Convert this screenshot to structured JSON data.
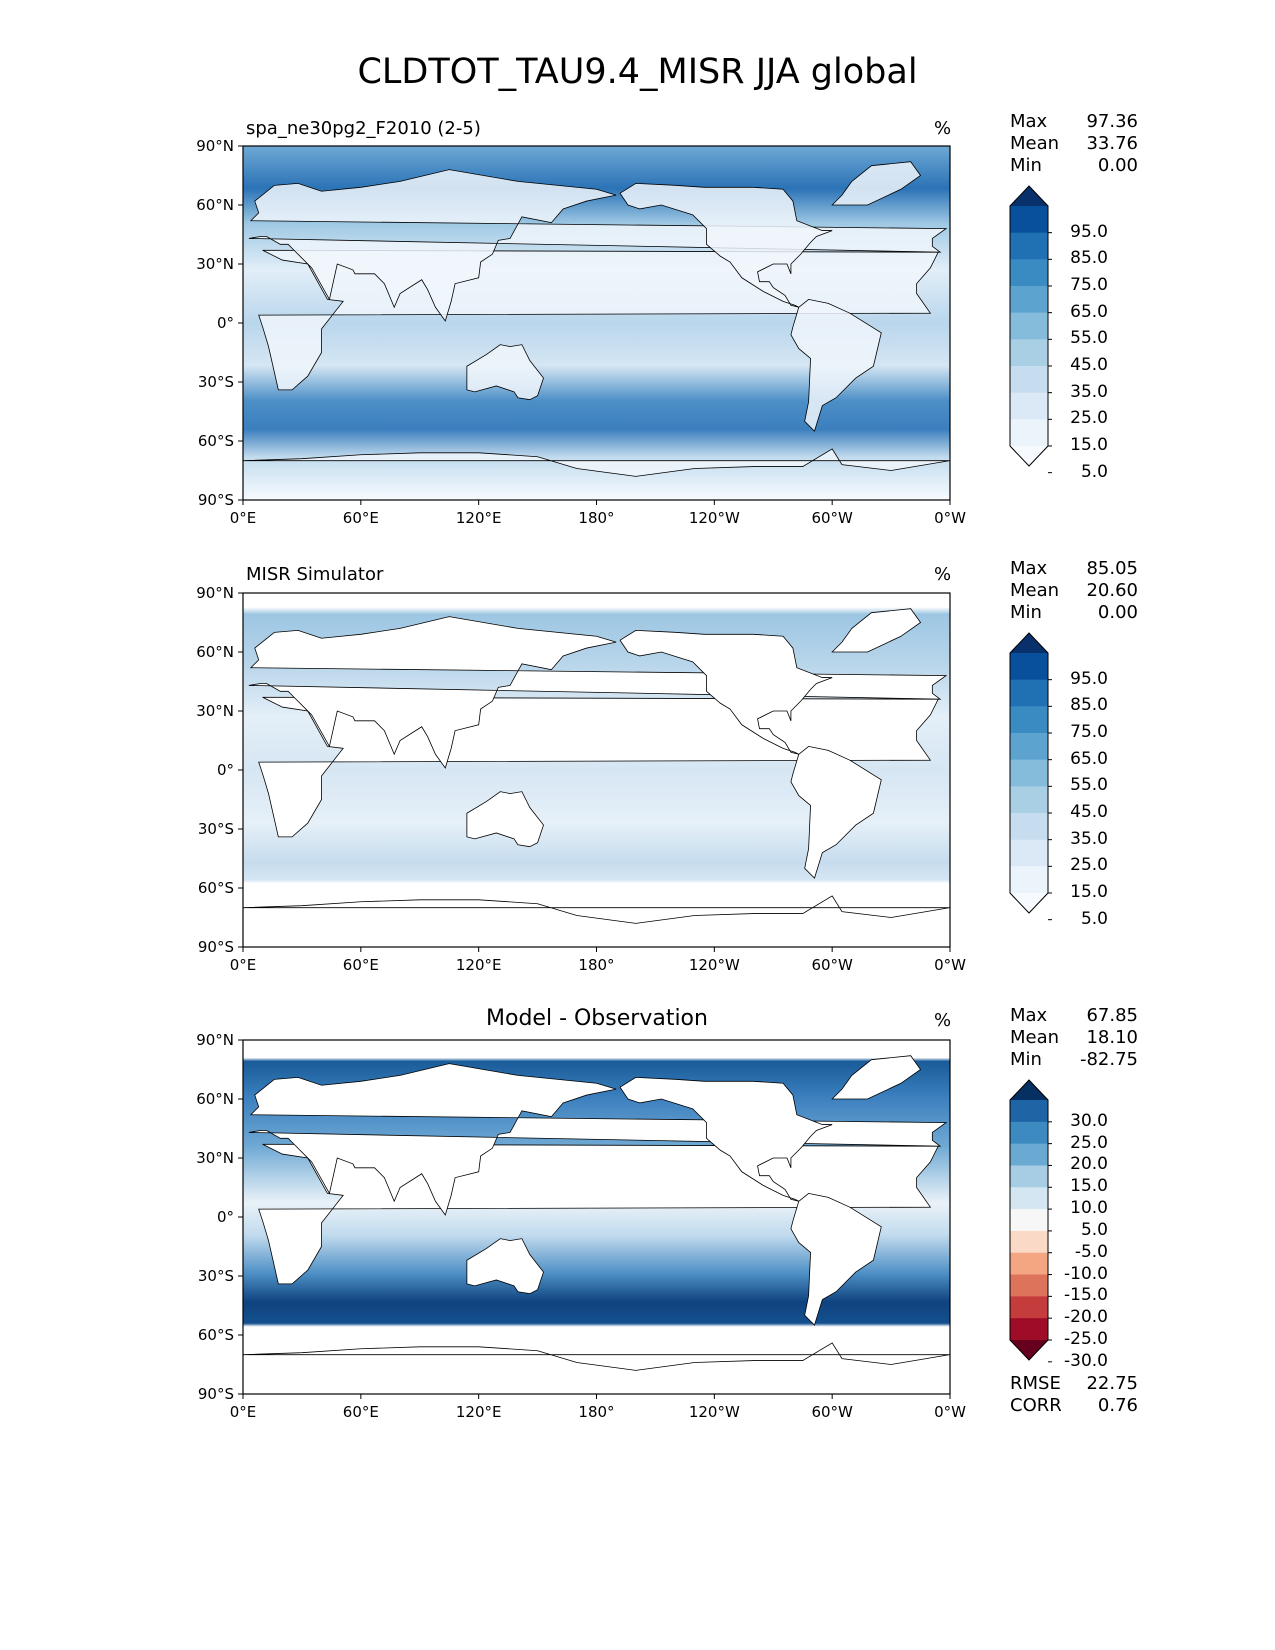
{
  "chart_data": {
    "type": "heatmap",
    "title": "CLDTOT_TAU9.4_MISR JJA global",
    "projection": "PlateCarree, central longitude 180",
    "x_ticks": [
      "0°E",
      "60°E",
      "120°E",
      "180°",
      "120°W",
      "60°W",
      "0°W"
    ],
    "y_ticks": [
      "90°N",
      "60°N",
      "30°N",
      "0°",
      "30°S",
      "60°S",
      "90°S"
    ],
    "panels": [
      {
        "id": "test",
        "title": "spa_ne30pg2_F2010 (2-5)",
        "units": "%",
        "stats": {
          "max_label": "Max",
          "max": "97.36",
          "mean_label": "Mean",
          "mean": "33.76",
          "min_label": "Min",
          "min": "0.00"
        },
        "colorbar": {
          "labels": [
            "95.0",
            "85.0",
            "75.0",
            "65.0",
            "55.0",
            "45.0",
            "35.0",
            "25.0",
            "15.0",
            "5.0"
          ],
          "colors": [
            "#08306b",
            "#08509b",
            "#2070b4",
            "#3a8bc2",
            "#5ca3d0",
            "#86bcdb",
            "#a9cfe5",
            "#c6dcef",
            "#dbe9f6",
            "#ebf3fb",
            "#f7fbff"
          ]
        }
      },
      {
        "id": "reference",
        "title": "MISR Simulator",
        "units": "%",
        "stats": {
          "max_label": "Max",
          "max": "85.05",
          "mean_label": "Mean",
          "mean": "20.60",
          "min_label": "Min",
          "min": "0.00"
        },
        "colorbar": {
          "labels": [
            "95.0",
            "85.0",
            "75.0",
            "65.0",
            "55.0",
            "45.0",
            "35.0",
            "25.0",
            "15.0",
            "5.0"
          ],
          "colors": [
            "#08306b",
            "#08509b",
            "#2070b4",
            "#3a8bc2",
            "#5ca3d0",
            "#86bcdb",
            "#a9cfe5",
            "#c6dcef",
            "#dbe9f6",
            "#ebf3fb",
            "#f7fbff"
          ]
        }
      },
      {
        "id": "difference",
        "title": "Model - Observation",
        "units": "%",
        "stats": {
          "max_label": "Max",
          "max": "67.85",
          "mean_label": "Mean",
          "mean": "18.10",
          "min_label": "Min",
          "min": "-82.75"
        },
        "extra_stats": {
          "rmse_label": "RMSE",
          "rmse": "22.75",
          "corr_label": "CORR",
          "corr": "0.76"
        },
        "colorbar": {
          "labels": [
            "30.0",
            "25.0",
            "20.0",
            "15.0",
            "10.0",
            "5.0",
            "-5.0",
            "-10.0",
            "-15.0",
            "-20.0",
            "-25.0",
            "-30.0"
          ],
          "colors": [
            "#053061",
            "#1f64a5",
            "#3c8ac0",
            "#6aaad2",
            "#a6cde3",
            "#d4e6f1",
            "#f7f7f7",
            "#fbd9c7",
            "#f4a582",
            "#de735b",
            "#c43c3c",
            "#9e0c27",
            "#67001f"
          ]
        }
      }
    ]
  }
}
